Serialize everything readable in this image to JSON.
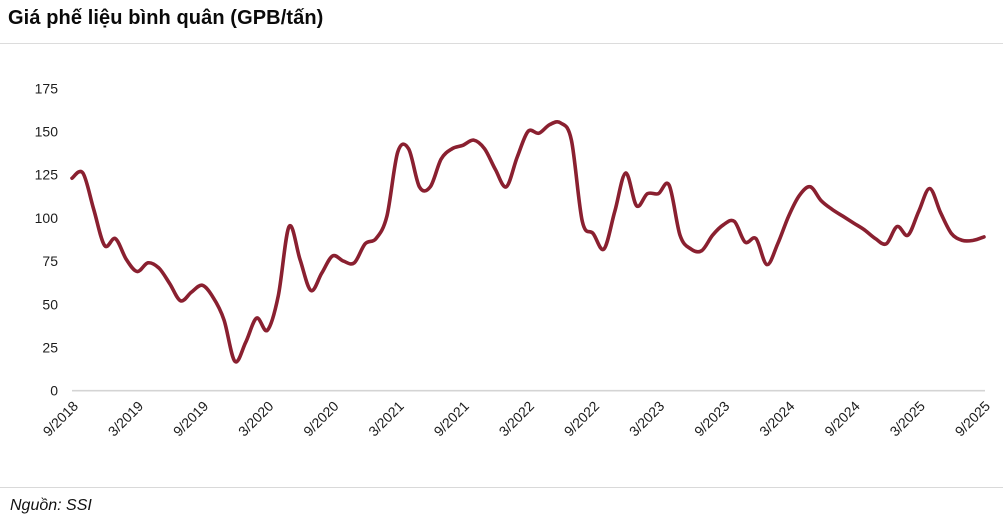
{
  "header": {
    "title": "Giá phế liệu bình quân (GPB/tấn)"
  },
  "footer": {
    "source_label": "Nguồn: SSI"
  },
  "colors": {
    "line": "#8A2030",
    "axis_line": "#d4d4d4",
    "divider": "#dcdcdc",
    "text": "#1c1c1c"
  },
  "chart_data": {
    "type": "line",
    "title": "Giá phế liệu bình quân (GPB/tấn)",
    "ylabel": "",
    "xlabel": "",
    "unit": "GPB/tấn",
    "source": "SSI",
    "grid": false,
    "legend": "none",
    "ylim": [
      0,
      175
    ],
    "y_ticks": [
      175,
      150,
      125,
      100,
      75,
      50,
      25,
      0
    ],
    "x_tick_labels": [
      "9/2018",
      "3/2019",
      "9/2019",
      "3/2020",
      "9/2020",
      "3/2021",
      "9/2021",
      "3/2022",
      "9/2022",
      "3/2023",
      "9/2023",
      "3/2024",
      "9/2024",
      "3/2025",
      "9/2025"
    ],
    "x_tick_every": 6,
    "x": [
      "9/2018",
      "10/2018",
      "11/2018",
      "12/2018",
      "1/2019",
      "2/2019",
      "3/2019",
      "4/2019",
      "5/2019",
      "6/2019",
      "7/2019",
      "8/2019",
      "9/2019",
      "10/2019",
      "11/2019",
      "12/2019",
      "1/2020",
      "2/2020",
      "3/2020",
      "4/2020",
      "5/2020",
      "6/2020",
      "7/2020",
      "8/2020",
      "9/2020",
      "10/2020",
      "11/2020",
      "12/2020",
      "1/2021",
      "2/2021",
      "3/2021",
      "4/2021",
      "5/2021",
      "6/2021",
      "7/2021",
      "8/2021",
      "9/2021",
      "10/2021",
      "11/2021",
      "12/2021",
      "1/2022",
      "2/2022",
      "3/2022",
      "4/2022",
      "5/2022",
      "6/2022",
      "7/2022",
      "8/2022",
      "9/2022",
      "10/2022",
      "11/2022",
      "12/2022",
      "1/2023",
      "2/2023",
      "3/2023",
      "4/2023",
      "5/2023",
      "6/2023",
      "7/2023",
      "8/2023",
      "9/2023",
      "10/2023",
      "11/2023",
      "12/2023",
      "1/2024",
      "2/2024",
      "3/2024",
      "4/2024",
      "5/2024",
      "6/2024",
      "7/2024",
      "8/2024",
      "9/2024",
      "10/2024",
      "11/2024",
      "12/2024",
      "1/2025",
      "2/2025",
      "3/2025",
      "4/2025",
      "5/2025",
      "6/2025",
      "7/2025",
      "8/2025",
      "9/2025"
    ],
    "series": [
      {
        "name": "Giá phế liệu bình quân",
        "color": "#8A2030",
        "values": [
          123,
          126,
          105,
          84,
          88,
          76,
          69,
          74,
          71,
          62,
          52,
          57,
          61,
          54,
          41,
          17,
          28,
          42,
          35,
          55,
          95,
          76,
          58,
          68,
          78,
          75,
          74,
          85,
          88,
          101,
          138,
          140,
          118,
          118,
          134,
          140,
          142,
          145,
          140,
          128,
          118,
          135,
          150,
          149,
          154,
          155,
          145,
          98,
          91,
          82,
          104,
          126,
          107,
          114,
          114,
          119,
          90,
          82,
          81,
          90,
          96,
          98,
          86,
          88,
          73,
          85,
          101,
          113,
          118,
          110,
          105,
          101,
          97,
          93,
          88,
          85,
          95,
          90,
          104,
          117,
          103,
          91,
          87,
          87,
          89
        ]
      }
    ]
  }
}
